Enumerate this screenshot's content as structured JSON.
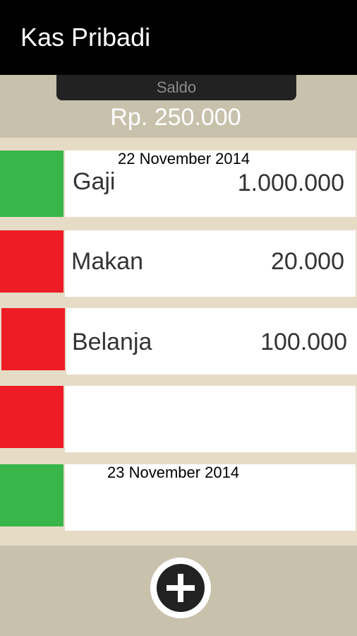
{
  "app": {
    "title": "Kas Pribadi"
  },
  "balance": {
    "label": "Saldo",
    "value": "Rp. 250.000"
  },
  "colors": {
    "income": "#3ab54a",
    "expense": "#ee1c25",
    "header_bg": "#000000",
    "panel_bg": "#c8c1ac",
    "list_bg": "#e6dcc6",
    "button_dark": "#222222"
  },
  "transactions": [
    {
      "date_header": "22 November 2014",
      "type": "income",
      "description": "Gaji",
      "amount": "1.000.000"
    },
    {
      "date_header": "",
      "type": "expense",
      "description": "Makan",
      "amount": "20.000"
    },
    {
      "date_header": "",
      "type": "expense",
      "description": "Belanja",
      "amount": "100.000"
    },
    {
      "date_header": "",
      "type": "expense",
      "description": "",
      "amount": ""
    },
    {
      "date_header": "23 November 2014",
      "type": "income",
      "description": "",
      "amount": ""
    }
  ],
  "add_button": {
    "icon": "plus-icon"
  }
}
